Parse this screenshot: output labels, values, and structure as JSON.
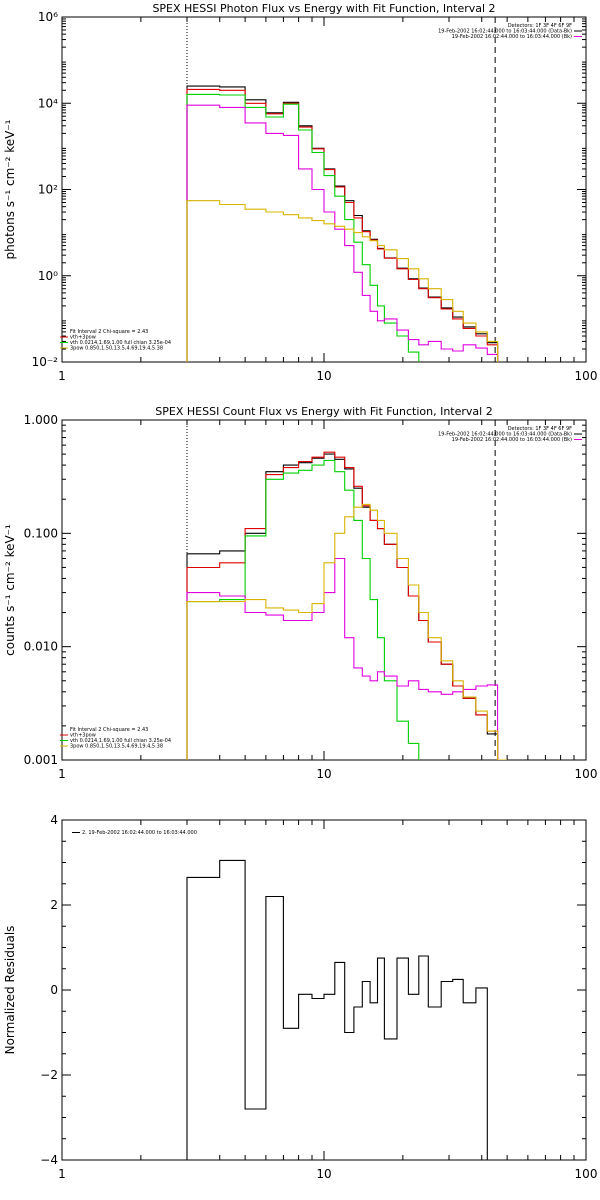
{
  "chart_data": [
    {
      "type": "line",
      "step": true,
      "title": "SPEX HESSI Photon Flux vs Energy with Fit Function, Interval 2",
      "ylabel": "photons s⁻¹ cm⁻² keV⁻¹",
      "xlabel": "",
      "xscale": "log",
      "yscale": "log",
      "xlim": [
        1,
        100
      ],
      "ylim": [
        0.01,
        1000000
      ],
      "xticks": [
        "1",
        "10",
        "100"
      ],
      "yticks": [
        {
          "value": 0.01,
          "label": "10⁻²"
        },
        {
          "value": 1,
          "label": "10⁰"
        },
        {
          "value": 100,
          "label": "10²"
        },
        {
          "value": 10000,
          "label": "10⁴"
        },
        {
          "value": 1000000,
          "label": "10⁶"
        }
      ],
      "vlines": [
        {
          "x": 3,
          "style": "dotted"
        },
        {
          "x": 45,
          "style": "dashed"
        }
      ],
      "legend_top_right": [
        {
          "text": "Detectors: 1F 3F 4F 6F 9F",
          "color": ""
        },
        {
          "text": "19-Feb-2002 16:02:44.000 to 16:03:44.000 (Data-Bk)",
          "color": "#000000"
        },
        {
          "text": "19-Feb-2002 16:02:44.000 to 16:03:44.000 (Bk)",
          "color": "#e000e0"
        }
      ],
      "legend_bottom_left": [
        {
          "text": "Fit Interval 2   Chi-square = 2.43",
          "color": ""
        },
        {
          "text": "vth+3pow",
          "color": "#e00000"
        },
        {
          "text": "vth 0.0214,1.69,1.00  full chian 3.25e-04",
          "color": "#00d000"
        },
        {
          "text": "3pow 0.850,1.50,13.5,4.69,19.4,5.38",
          "color": "#d8b400"
        }
      ],
      "series": [
        {
          "name": "19-Feb-2002 16:02:44.000 to 16:03:44.000 (Data-Bk)",
          "color": "#000000",
          "edges": [
            3,
            4,
            5,
            6,
            7,
            8,
            9,
            10,
            11,
            12,
            13,
            14,
            15,
            16,
            17,
            19,
            21,
            23,
            25,
            28,
            31,
            34,
            38,
            42,
            46
          ],
          "values": [
            25000,
            24000,
            12000,
            6000,
            10500,
            3000,
            900,
            300,
            120,
            55,
            25,
            11,
            7,
            4.3,
            2.6,
            1.5,
            0.85,
            0.52,
            0.32,
            0.18,
            0.11,
            0.065,
            0.045,
            0.028
          ]
        },
        {
          "name": "vth+3pow",
          "color": "#e00000",
          "edges": [
            3,
            4,
            5,
            6,
            7,
            8,
            9,
            10,
            11,
            12,
            13,
            14,
            15,
            16,
            17,
            19,
            21,
            23,
            25,
            28,
            31,
            34,
            38,
            42,
            46
          ],
          "values": [
            21000,
            20000,
            10000,
            5700,
            10000,
            2800,
            880,
            290,
            115,
            50,
            22,
            10.5,
            6.7,
            4.2,
            2.55,
            1.45,
            0.82,
            0.5,
            0.31,
            0.17,
            0.1,
            0.06,
            0.04,
            0.025
          ]
        },
        {
          "name": "vth",
          "color": "#00d000",
          "edges": [
            3,
            4,
            5,
            6,
            7,
            8,
            9,
            10,
            11,
            12,
            13,
            14,
            15,
            16,
            17,
            19,
            21,
            23,
            25
          ],
          "values": [
            16000,
            15500,
            8000,
            4800,
            9500,
            2400,
            720,
            210,
            70,
            20,
            6,
            1.8,
            0.6,
            0.2,
            0.08,
            0.04,
            0.017,
            0.007
          ]
        },
        {
          "name": "19-Feb-2002 16:02:44.000 to 16:03:44.000 (Bk)",
          "color": "#e000e0",
          "edges": [
            3,
            4,
            5,
            6,
            7,
            8,
            9,
            10,
            11,
            12,
            13,
            14,
            15,
            16,
            17,
            19,
            21,
            23,
            25,
            28,
            31,
            34,
            38,
            42,
            46
          ],
          "values": [
            9000,
            8000,
            3500,
            2000,
            1800,
            300,
            100,
            30,
            12,
            5,
            1.2,
            0.35,
            0.15,
            0.09,
            0.1,
            0.055,
            0.033,
            0.025,
            0.03,
            0.02,
            0.018,
            0.025,
            0.021,
            0.015
          ]
        },
        {
          "name": "3pow",
          "color": "#d8b400",
          "edges": [
            3,
            4,
            5,
            6,
            7,
            8,
            9,
            10,
            11,
            12,
            13,
            14,
            15,
            16,
            17,
            19,
            21,
            23,
            25,
            28,
            31,
            34,
            38,
            42,
            46
          ],
          "values": [
            55,
            45,
            35,
            30,
            26,
            22,
            19,
            16,
            14,
            12,
            10,
            8,
            6.5,
            5,
            4,
            2.5,
            1.45,
            0.85,
            0.5,
            0.28,
            0.15,
            0.08,
            0.05,
            0.03
          ]
        }
      ]
    },
    {
      "type": "line",
      "step": true,
      "title": "SPEX HESSI Count Flux vs Energy with Fit Function, Interval 2",
      "ylabel": "counts s⁻¹ cm⁻² keV⁻¹",
      "xlabel": "",
      "xscale": "log",
      "yscale": "log",
      "xlim": [
        1,
        100
      ],
      "ylim": [
        0.001,
        1
      ],
      "xticks": [
        "1",
        "10",
        "100"
      ],
      "yticks": [
        {
          "value": 0.001,
          "label": "0.001"
        },
        {
          "value": 0.01,
          "label": "0.010"
        },
        {
          "value": 0.1,
          "label": "0.100"
        },
        {
          "value": 1,
          "label": "1.000"
        }
      ],
      "vlines": [
        {
          "x": 3,
          "style": "dotted"
        },
        {
          "x": 45,
          "style": "dashed"
        }
      ],
      "legend_top_right": [
        {
          "text": "Detectors: 1F 3F 4F 6F 9F",
          "color": ""
        },
        {
          "text": "19-Feb-2002 16:02:44.000 to 16:03:44.000 (Data-Bk)",
          "color": "#000000"
        },
        {
          "text": "19-Feb-2002 16:02:44.000 to 16:03:44.000 (Bk)",
          "color": "#e000e0"
        }
      ],
      "legend_bottom_left": [
        {
          "text": "Fit Interval 2   Chi-square = 2.43",
          "color": ""
        },
        {
          "text": "vth+3pow",
          "color": "#e00000"
        },
        {
          "text": "vth 0.0214,1.69,1.00  full chian 3.25e-04",
          "color": "#00d000"
        },
        {
          "text": "3pow 0.850,1.50,13.5,4.69,19.4,5.38",
          "color": "#d8b400"
        }
      ],
      "series": [
        {
          "name": "19-Feb-2002 16:02:44.000 to 16:03:44.000 (Data-Bk)",
          "color": "#000000",
          "edges": [
            3,
            4,
            5,
            6,
            7,
            8,
            9,
            10,
            11,
            12,
            13,
            14,
            15,
            16,
            17,
            19,
            21,
            23,
            25,
            28,
            31,
            34,
            38,
            42,
            46,
            50
          ],
          "values": [
            0.066,
            0.07,
            0.1,
            0.35,
            0.4,
            0.42,
            0.46,
            0.5,
            0.45,
            0.37,
            0.25,
            0.17,
            0.13,
            0.11,
            0.08,
            0.05,
            0.028,
            0.017,
            0.011,
            0.007,
            0.0045,
            0.0035,
            0.0025,
            0.0017,
            0.001
          ]
        },
        {
          "name": "vth+3pow",
          "color": "#e00000",
          "edges": [
            3,
            4,
            5,
            6,
            7,
            8,
            9,
            10,
            11,
            12,
            13,
            14,
            15,
            16,
            17,
            19,
            21,
            23,
            25,
            28,
            31,
            34,
            38,
            42,
            46,
            50
          ],
          "values": [
            0.05,
            0.055,
            0.11,
            0.33,
            0.38,
            0.43,
            0.47,
            0.52,
            0.47,
            0.38,
            0.26,
            0.175,
            0.13,
            0.11,
            0.08,
            0.05,
            0.028,
            0.017,
            0.011,
            0.007,
            0.0045,
            0.0035,
            0.0025,
            0.0018,
            0.001
          ]
        },
        {
          "name": "vth",
          "color": "#00d000",
          "edges": [
            3,
            4,
            5,
            6,
            7,
            8,
            9,
            10,
            11,
            12,
            13,
            14,
            15,
            16,
            17,
            19,
            21,
            23,
            25
          ],
          "values": [
            0.025,
            0.026,
            0.095,
            0.3,
            0.34,
            0.36,
            0.4,
            0.44,
            0.35,
            0.24,
            0.13,
            0.06,
            0.026,
            0.012,
            0.005,
            0.0022,
            0.0014,
            0.0008
          ]
        },
        {
          "name": "19-Feb-2002 16:02:44.000 to 16:03:44.000 (Bk)",
          "color": "#e000e0",
          "edges": [
            3,
            4,
            5,
            6,
            7,
            8,
            9,
            10,
            11,
            12,
            13,
            14,
            15,
            16,
            17,
            19,
            21,
            23,
            25,
            28,
            31,
            34,
            38,
            42,
            46
          ],
          "values": [
            0.03,
            0.028,
            0.02,
            0.019,
            0.017,
            0.017,
            0.02,
            0.03,
            0.06,
            0.012,
            0.0065,
            0.0055,
            0.005,
            0.006,
            0.0055,
            0.0045,
            0.005,
            0.0042,
            0.004,
            0.0038,
            0.004,
            0.0042,
            0.0045,
            0.0046
          ]
        },
        {
          "name": "3pow",
          "color": "#d8b400",
          "edges": [
            3,
            4,
            5,
            6,
            7,
            8,
            9,
            10,
            11,
            12,
            13,
            14,
            15,
            16,
            17,
            19,
            21,
            23,
            25,
            28,
            31,
            34,
            38,
            42,
            46,
            50
          ],
          "values": [
            0.025,
            0.025,
            0.026,
            0.022,
            0.021,
            0.02,
            0.024,
            0.055,
            0.1,
            0.14,
            0.17,
            0.18,
            0.16,
            0.13,
            0.1,
            0.06,
            0.035,
            0.02,
            0.012,
            0.0075,
            0.005,
            0.0036,
            0.0027,
            0.0018,
            0.001
          ]
        }
      ]
    },
    {
      "type": "line",
      "step": true,
      "title": "",
      "ylabel": "Normalized Residuals",
      "xlabel": "",
      "xscale": "log",
      "yscale": "linear",
      "xlim": [
        1,
        100
      ],
      "ylim": [
        -4,
        4
      ],
      "xticks": [
        "1",
        "10",
        "100"
      ],
      "yticks": [
        {
          "value": -4,
          "label": "−4"
        },
        {
          "value": -2,
          "label": "−2"
        },
        {
          "value": 0,
          "label": "0"
        },
        {
          "value": 2,
          "label": "2"
        },
        {
          "value": 4,
          "label": "4"
        }
      ],
      "vlines": [],
      "legend_top_right": [],
      "legend_bottom_left": [],
      "legend_top_left": [
        {
          "text": "2. 19-Feb-2002 16:02:44.000 to 16:03:44.000",
          "color": "#000000"
        }
      ],
      "series": [
        {
          "name": "2. 19-Feb-2002 16:02:44.000 to 16:03:44.000",
          "color": "#000000",
          "edges": [
            3,
            4,
            5,
            6,
            7,
            8,
            9,
            10,
            11,
            12,
            13,
            14,
            15,
            16,
            17,
            19,
            21,
            23,
            25,
            28,
            31,
            34,
            38,
            42,
            46
          ],
          "values": [
            2.65,
            3.05,
            -2.8,
            2.2,
            -0.9,
            -0.1,
            -0.2,
            -0.1,
            0.65,
            -1.0,
            -0.4,
            0.2,
            -0.3,
            0.75,
            -1.15,
            0.75,
            -0.1,
            0.8,
            -0.4,
            0.2,
            0.25,
            -0.3,
            0.05,
            -4.0
          ]
        }
      ]
    }
  ]
}
